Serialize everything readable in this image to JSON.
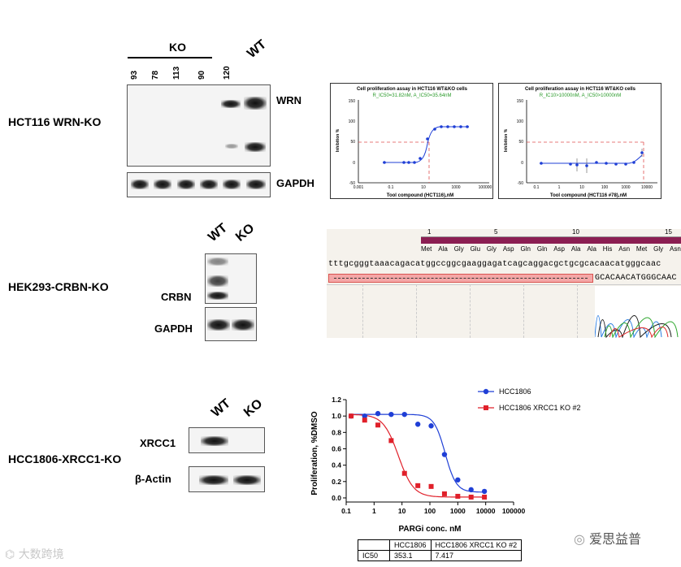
{
  "row1": {
    "label": "HCT116 WRN-KO",
    "ko_label": "KO",
    "wt_label": "WT",
    "lanes": [
      "93",
      "78",
      "113",
      "90",
      "120"
    ],
    "blot_labels": [
      "WRN",
      "GAPDH"
    ]
  },
  "chart1": {
    "title": "Cell proliferation assay in HCT116 WT&KO cells",
    "subtitle": "R_IC50=31.82nM, A_IC50=35.64nM",
    "ylabel": "Inhibition %",
    "xlabel": "Tool compound (HCT116),nM",
    "yticks": [
      "150",
      "100",
      "50",
      "0",
      "-50"
    ],
    "xticks": [
      "0.001",
      "0.1",
      "10",
      "1000",
      "100000"
    ]
  },
  "chart2": {
    "title": "Cell proliferation assay in HCT116 WT&KO cells",
    "subtitle": "R_IC10>10000nM, A_IC50>10000nM",
    "ylabel": "Inhibition %",
    "xlabel": "Tool compound (HCT116 #78),nM",
    "yticks": [
      "150",
      "100",
      "50",
      "0",
      "-50"
    ],
    "xticks": [
      "0.1",
      "1",
      "10",
      "100",
      "1000",
      "10000"
    ]
  },
  "row2": {
    "label": "HEK293-CRBN-KO",
    "wt_label": "WT",
    "ko_label": "KO",
    "blot_labels": [
      "CRBN",
      "GAPDH"
    ]
  },
  "sequence": {
    "numbers": [
      "1",
      "5",
      "10",
      "15"
    ],
    "amino_acids": [
      "Met",
      "Ala",
      "Gly",
      "Glu",
      "Gly",
      "Asp",
      "Gln",
      "Gln",
      "Asp",
      "Ala",
      "Ala",
      "His",
      "Asn",
      "Met",
      "Gly",
      "Asn"
    ],
    "dna": "tttgcgggtaaacagacatggccggcgaaggagatcagcaggacgctgcgcacaacatgggcaac",
    "read": "GCACAACATGGGCAAC",
    "colors": {
      "protein_bar": "#8b1e52",
      "deletion_bar": "#f4a7a7",
      "deletion_border": "#d9534f"
    }
  },
  "row3": {
    "label": "HCC1806-XRCC1-KO",
    "wt_label": "WT",
    "ko_label": "KO",
    "blot_labels": [
      "XRCC1",
      "β-Actin"
    ]
  },
  "chart_data": {
    "type": "scatter",
    "xscale": "log",
    "xlabel": "PARGi conc. nM",
    "ylabel": "Proliferation, %DMSO",
    "xticks": [
      "0.1",
      "1",
      "10",
      "100",
      "1000",
      "10000",
      "100000"
    ],
    "yticks": [
      "0.0",
      "0.2",
      "0.4",
      "0.6",
      "0.8",
      "1.0",
      "1.2"
    ],
    "xlim": [
      0.1,
      100000
    ],
    "ylim": [
      -0.05,
      1.2
    ],
    "legend_position": "top-right",
    "series": [
      {
        "name": "HCC1806",
        "color": "#1f3fd6",
        "marker": "circle",
        "x": [
          0.15,
          0.46,
          1.37,
          4.1,
          12.3,
          37,
          111,
          333,
          1000,
          3000,
          9000
        ],
        "y": [
          1.0,
          1.0,
          1.03,
          1.02,
          1.02,
          0.9,
          0.88,
          0.53,
          0.22,
          0.1,
          0.08
        ],
        "ic50": 353.1
      },
      {
        "name": "HCC1806 XRCC1 KO #2",
        "color": "#e0202a",
        "marker": "square",
        "x": [
          0.15,
          0.46,
          1.37,
          4.1,
          12.3,
          37,
          111,
          333,
          1000,
          3000,
          9000
        ],
        "y": [
          1.0,
          0.95,
          0.89,
          0.7,
          0.3,
          0.15,
          0.14,
          0.05,
          0.02,
          0.01,
          0.01
        ],
        "ic50": 7.417
      }
    ]
  },
  "ic50_table": {
    "headers": [
      "",
      "HCC1806",
      "HCC1806 XRCC1 KO #2"
    ],
    "row": [
      "IC50",
      "353.1",
      "7.417"
    ]
  },
  "watermarks": {
    "left": "大数跨境",
    "right": "爱思益普"
  }
}
